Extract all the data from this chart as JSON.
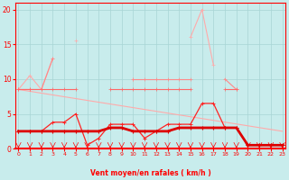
{
  "x": [
    0,
    1,
    2,
    3,
    4,
    5,
    6,
    7,
    8,
    9,
    10,
    11,
    12,
    13,
    14,
    15,
    16,
    17,
    18,
    19,
    20,
    21,
    22,
    23
  ],
  "line_rafales_high": [
    8.5,
    10.5,
    8.5,
    13.0,
    null,
    15.5,
    null,
    null,
    null,
    null,
    10.0,
    null,
    null,
    null,
    null,
    16.0,
    20.0,
    12.0,
    null,
    null,
    null,
    null,
    null,
    null
  ],
  "line_rafales_med": [
    8.5,
    8.5,
    8.5,
    13.0,
    null,
    null,
    null,
    null,
    null,
    null,
    10.0,
    10.0,
    10.0,
    10.0,
    10.0,
    10.0,
    null,
    null,
    10.0,
    8.5,
    null,
    null,
    null,
    null
  ],
  "line_rafales_low": [
    8.5,
    8.5,
    8.5,
    8.5,
    8.5,
    8.5,
    null,
    null,
    8.5,
    8.5,
    8.5,
    8.5,
    8.5,
    8.5,
    8.5,
    8.5,
    null,
    null,
    8.5,
    8.5,
    null,
    null,
    null,
    null
  ],
  "line_trend": [
    [
      0,
      8.5
    ],
    [
      23,
      2.5
    ]
  ],
  "line_vent_high": [
    2.5,
    2.5,
    2.5,
    3.8,
    3.8,
    5.0,
    0.5,
    1.5,
    3.5,
    3.5,
    3.5,
    1.5,
    2.5,
    3.5,
    3.5,
    3.5,
    6.5,
    6.5,
    3.0,
    3.0,
    0.5,
    0.5,
    0.5,
    0.5
  ],
  "line_vent_low": [
    2.5,
    2.5,
    2.5,
    2.5,
    2.5,
    2.5,
    2.5,
    2.5,
    3.0,
    3.0,
    2.5,
    2.5,
    2.5,
    2.5,
    3.0,
    3.0,
    3.0,
    3.0,
    3.0,
    3.0,
    0.5,
    0.5,
    0.5,
    0.5
  ],
  "background_color": "#c8ecec",
  "grid_color": "#a8d4d4",
  "color_lightest": "#ffaaaa",
  "color_light": "#ff8888",
  "color_medium": "#ff6666",
  "color_dark": "#ff2222",
  "color_darkest": "#dd0000",
  "xlabel": "Vent moyen/en rafales ( km/h )",
  "ylim": [
    0,
    21
  ],
  "xlim": [
    -0.3,
    23.3
  ],
  "yticks": [
    0,
    5,
    10,
    15,
    20
  ],
  "xticks": [
    0,
    1,
    2,
    3,
    4,
    5,
    6,
    7,
    8,
    9,
    10,
    11,
    12,
    13,
    14,
    15,
    16,
    17,
    18,
    19,
    20,
    21,
    22,
    23
  ]
}
